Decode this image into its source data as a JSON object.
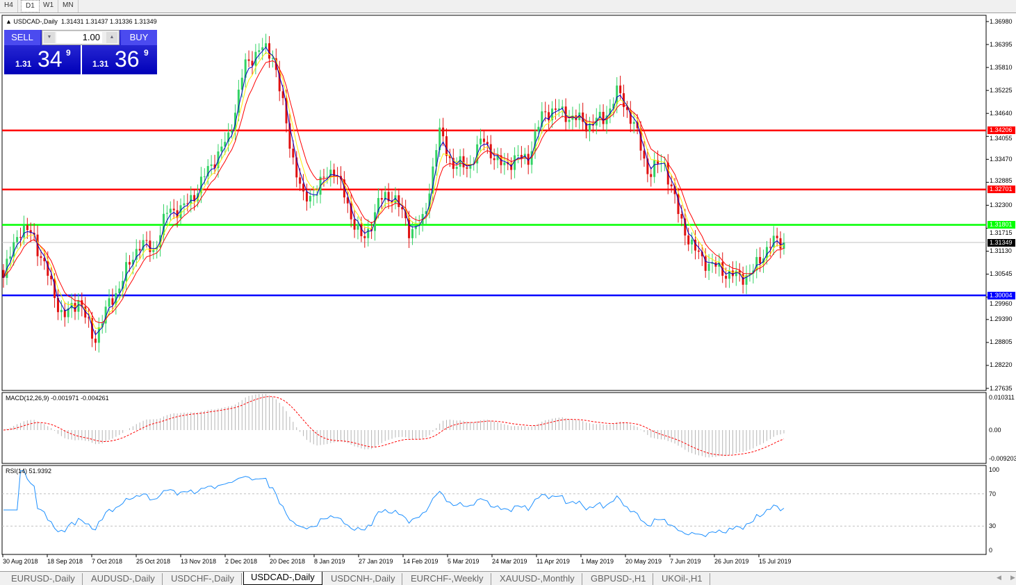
{
  "timeframes": [
    "H4",
    "D1",
    "W1",
    "MN"
  ],
  "active_timeframe": "D1",
  "chart": {
    "symbol_title": "USDCAD-,Daily",
    "ohlc": "1.31431 1.31437 1.31336 1.31349"
  },
  "trade_panel": {
    "sell_label": "SELL",
    "buy_label": "BUY",
    "lot": "1.00",
    "sell_prefix": "1.31",
    "sell_big": "34",
    "sell_sup": "9",
    "buy_prefix": "1.31",
    "buy_big": "36",
    "buy_sup": "9"
  },
  "price_axis": [
    "1.36980",
    "1.36395",
    "1.35810",
    "1.35225",
    "1.34640",
    "1.34055",
    "1.33470",
    "1.32885",
    "1.32300",
    "1.31715",
    "1.31130",
    "1.30545",
    "1.29960",
    "1.29390",
    "1.28805",
    "1.28220",
    "1.27635"
  ],
  "levels": [
    {
      "price": "1.34206",
      "color": "#ff0000"
    },
    {
      "price": "1.32701",
      "color": "#ff0000"
    },
    {
      "price": "1.31801",
      "color": "#00ff00"
    },
    {
      "price": "1.30004",
      "color": "#0000ff"
    }
  ],
  "current_price": "1.31349",
  "macd": {
    "label": "MACD(12,26,9) -0.001971 -0.004261",
    "axis": [
      "0.010311",
      "0.00",
      "-0.009203"
    ]
  },
  "rsi": {
    "label": "RSI(14) 51.9392",
    "axis": [
      "100",
      "70",
      "30",
      "0"
    ]
  },
  "date_axis": [
    "30 Aug 2018",
    "18 Sep 2018",
    "7 Oct 2018",
    "25 Oct 2018",
    "13 Nov 2018",
    "2 Dec 2018",
    "20 Dec 2018",
    "8 Jan 2019",
    "27 Jan 2019",
    "14 Feb 2019",
    "5 Mar 2019",
    "24 Mar 2019",
    "11 Apr 2019",
    "1 May 2019",
    "20 May 2019",
    "7 Jun 2019",
    "26 Jun 2019",
    "15 Jul 2019"
  ],
  "approx_closes": [
    1.3045,
    1.317,
    1.3153,
    1.3045,
    1.294,
    1.2993,
    1.2885,
    1.2974,
    1.3045,
    1.3133,
    1.3115,
    1.322,
    1.322,
    1.3275,
    1.3345,
    1.34,
    1.3576,
    1.363,
    1.3612,
    1.34,
    1.324,
    1.3275,
    1.333,
    1.322,
    1.3133,
    1.324,
    1.3257,
    1.3168,
    1.3186,
    1.3417,
    1.333,
    1.333,
    1.34,
    1.333,
    1.3345,
    1.3354,
    1.347,
    1.347,
    1.3452,
    1.3435,
    1.3452,
    1.352,
    1.3435,
    1.331,
    1.3345,
    1.3204,
    1.3115,
    1.308,
    1.3062,
    1.3045,
    1.3062,
    1.3133,
    1.3135
  ],
  "colors": {
    "bull": "#32d264",
    "bear": "#e01010",
    "ma_fast": "#0000c0",
    "ma_mid": "#ff0000",
    "ma_slow": "#ffee00"
  },
  "tabs": [
    "EURUSD-,Daily",
    "AUDUSD-,Daily",
    "USDCHF-,Daily",
    "USDCAD-,Daily",
    "USDCNH-,Daily",
    "EURCHF-,Weekly",
    "XAUUSD-,Monthly",
    "GBPUSD-,H1",
    "UKOil-,H1"
  ],
  "active_tab": "USDCAD-,Daily"
}
